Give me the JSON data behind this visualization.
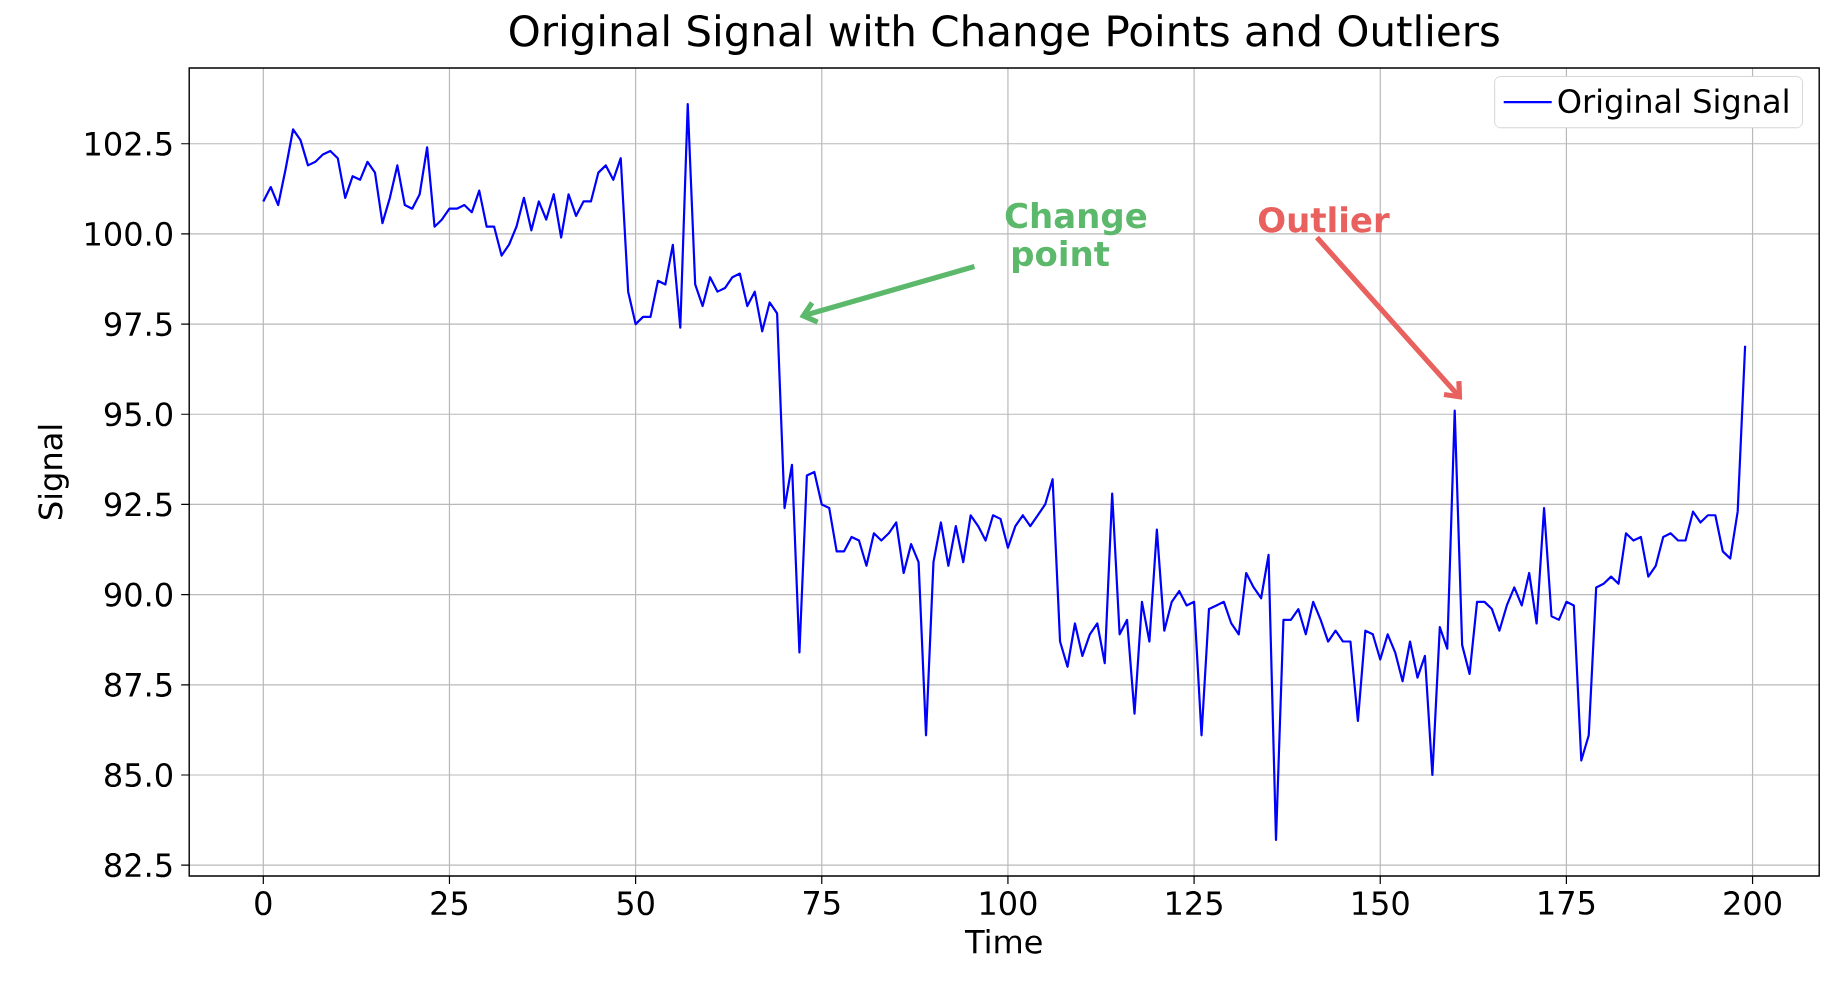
{
  "chart_data": {
    "type": "line",
    "title": "Original Signal with Change Points and Outliers",
    "xlabel": "Time",
    "ylabel": "Signal",
    "x": [
      0,
      1,
      2,
      3,
      4,
      5,
      6,
      7,
      8,
      9,
      10,
      11,
      12,
      13,
      14,
      15,
      16,
      17,
      18,
      19,
      20,
      21,
      22,
      23,
      24,
      25,
      26,
      27,
      28,
      29,
      30,
      31,
      32,
      33,
      34,
      35,
      36,
      37,
      38,
      39,
      40,
      41,
      42,
      43,
      44,
      45,
      46,
      47,
      48,
      49,
      50,
      51,
      52,
      53,
      54,
      55,
      56,
      57,
      58,
      59,
      60,
      61,
      62,
      63,
      64,
      65,
      66,
      67,
      68,
      69,
      70,
      71,
      72,
      73,
      74,
      75,
      76,
      77,
      78,
      79,
      80,
      81,
      82,
      83,
      84,
      85,
      86,
      87,
      88,
      89,
      90,
      91,
      92,
      93,
      94,
      95,
      96,
      97,
      98,
      99,
      100,
      101,
      102,
      103,
      104,
      105,
      106,
      107,
      108,
      109,
      110,
      111,
      112,
      113,
      114,
      115,
      116,
      117,
      118,
      119,
      120,
      121,
      122,
      123,
      124,
      125,
      126,
      127,
      128,
      129,
      130,
      131,
      132,
      133,
      134,
      135,
      136,
      137,
      138,
      139,
      140,
      141,
      142,
      143,
      144,
      145,
      146,
      147,
      148,
      149,
      150,
      151,
      152,
      153,
      154,
      155,
      156,
      157,
      158,
      159,
      160,
      161,
      162,
      163,
      164,
      165,
      166,
      167,
      168,
      169,
      170,
      171,
      172,
      173,
      174,
      175,
      176,
      177,
      178,
      179,
      180,
      181,
      182,
      183,
      184,
      185,
      186,
      187,
      188,
      189,
      190,
      191,
      192,
      193,
      194,
      195,
      196,
      197,
      198,
      199
    ],
    "series": [
      {
        "name": "Original Signal",
        "color": "#0000ff",
        "values": [
          100.9,
          101.3,
          100.8,
          101.8,
          102.9,
          102.6,
          101.9,
          102.0,
          102.2,
          102.3,
          102.1,
          101.0,
          101.6,
          101.5,
          102.0,
          101.7,
          100.3,
          101.0,
          101.9,
          100.8,
          100.7,
          101.1,
          102.4,
          100.2,
          100.4,
          100.7,
          100.7,
          100.8,
          100.6,
          101.2,
          100.2,
          100.2,
          99.4,
          99.7,
          100.2,
          101.0,
          100.1,
          100.9,
          100.4,
          101.1,
          99.9,
          101.1,
          100.5,
          100.9,
          100.9,
          101.7,
          101.9,
          101.5,
          102.1,
          98.4,
          97.5,
          97.7,
          97.7,
          98.7,
          98.6,
          99.7,
          97.4,
          103.6,
          98.6,
          98.0,
          98.8,
          98.4,
          98.5,
          98.8,
          98.9,
          98.0,
          98.4,
          97.3,
          98.1,
          97.8,
          92.4,
          93.6,
          88.4,
          93.3,
          93.4,
          92.5,
          92.4,
          91.2,
          91.2,
          91.6,
          91.5,
          90.8,
          91.7,
          91.5,
          91.7,
          92.0,
          90.6,
          91.4,
          90.9,
          86.1,
          90.9,
          92.0,
          90.8,
          91.9,
          90.9,
          92.2,
          91.9,
          91.5,
          92.2,
          92.1,
          91.3,
          91.9,
          92.2,
          91.9,
          92.2,
          92.5,
          93.2,
          88.7,
          88.0,
          89.2,
          88.3,
          88.9,
          89.2,
          88.1,
          92.8,
          88.9,
          89.3,
          86.7,
          89.8,
          88.7,
          91.8,
          89.0,
          89.8,
          90.1,
          89.7,
          89.8,
          86.1,
          89.6,
          89.7,
          89.8,
          89.2,
          88.9,
          90.6,
          90.2,
          89.9,
          91.1,
          83.2,
          89.3,
          89.3,
          89.6,
          88.9,
          89.8,
          89.3,
          88.7,
          89.0,
          88.7,
          88.7,
          86.5,
          89.0,
          88.9,
          88.2,
          88.9,
          88.4,
          87.6,
          88.7,
          87.7,
          88.3,
          85.0,
          89.1,
          88.5,
          95.1,
          88.6,
          87.8,
          89.8,
          89.8,
          89.6,
          89.0,
          89.7,
          90.2,
          89.7,
          90.6,
          89.2,
          92.4,
          89.4,
          89.3,
          89.8,
          89.7,
          85.4,
          86.1,
          90.2,
          90.3,
          90.5,
          90.3,
          91.7,
          91.5,
          91.6,
          90.5,
          90.8,
          91.6,
          91.7,
          91.5,
          91.5,
          92.3,
          92.0,
          92.2,
          92.2,
          91.2,
          91.0,
          92.3,
          96.9
        ]
      }
    ],
    "xlim": [
      -9.95,
      208.95
    ],
    "ylim": [
      82.2,
      104.6
    ],
    "xticks": [
      0,
      25,
      50,
      75,
      100,
      125,
      150,
      175,
      200
    ],
    "yticks": [
      82.5,
      {
        "value": 85,
        "label": "85.0"
      },
      87.5,
      {
        "value": 90,
        "label": "90.0"
      },
      92.5,
      {
        "value": 95,
        "label": "95.0"
      },
      97.5,
      {
        "value": 100,
        "label": "100.0"
      },
      102.5
    ],
    "grid": true,
    "legend": "top right",
    "annotations": [
      "Change point",
      "Outlier"
    ]
  }
}
